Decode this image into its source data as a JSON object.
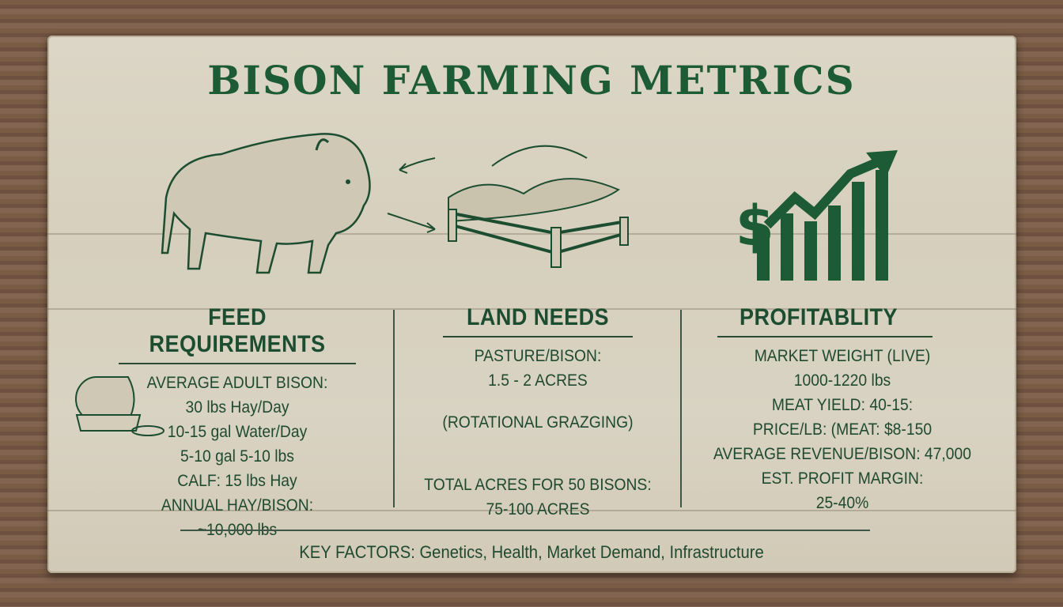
{
  "title": "BISON FARMING METRICS",
  "colors": {
    "ink": "#1d4d30",
    "board": "#d8d1c0",
    "wood": "#7a5c44"
  },
  "icons": [
    "bison-illustration",
    "pasture-fence-illustration",
    "dollar-growth-chart-icon",
    "hay-bale-water-icon",
    "arrow-icon"
  ],
  "sections": [
    {
      "heading": "FEED REQUIREMENTS",
      "lines": [
        "AVERAGE ADULT BISON:",
        "30 lbs Hay/Day",
        "10-15 gal Water/Day",
        "5-10 gal 5-10 lbs",
        "CALF: 15 lbs Hay",
        "ANNUAL HAY/BISON:",
        "~10,000 lbs"
      ]
    },
    {
      "heading": "LAND NEEDS",
      "lines": [
        "PASTURE/BISON:",
        "1.5 - 2 ACRES",
        "",
        "(ROTATIONAL GRAZGING)",
        "",
        "",
        "TOTAL ACRES FOR 50 BISONS:",
        "75-100 ACRES"
      ]
    },
    {
      "heading": "PROFITABLITY",
      "lines": [
        "MARKET WEIGHT (LIVE)",
        "1000-1220 lbs",
        "MEAT YIELD: 40-15:",
        "PRICE/LB: (MEAT: $8-150",
        "AVERAGE REVENUE/BISON:  47,000",
        "EST. PROFIT MARGIN:",
        "25-40%"
      ]
    }
  ],
  "footer": "KEY FACTORS: Genetics, Health, Market Demand, Infrastructure"
}
